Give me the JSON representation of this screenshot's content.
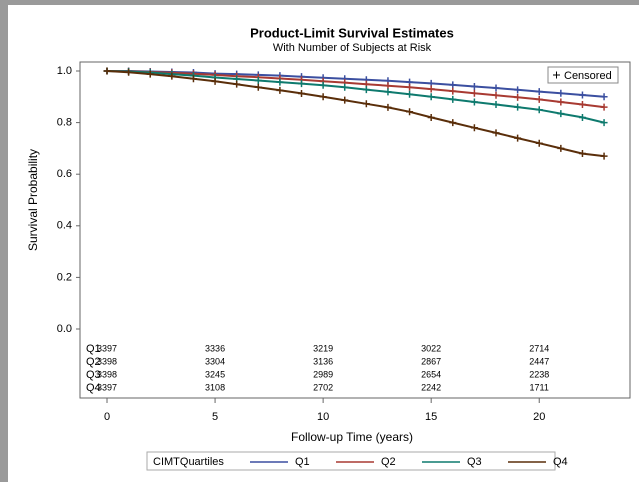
{
  "chart_data": {
    "type": "survival",
    "title": "Product-Limit Survival Estimates",
    "subtitle": "With Number of Subjects at Risk",
    "x_label": "Follow-up Time (years)",
    "y_label": "Survival Probability",
    "legend_title": "CIMTQuartiles",
    "censored_label": "Censored",
    "x": [
      0,
      1,
      2,
      3,
      4,
      5,
      6,
      7,
      8,
      9,
      10,
      11,
      12,
      13,
      14,
      15,
      16,
      17,
      18,
      19,
      20,
      21,
      22,
      23
    ],
    "series": [
      {
        "name": "Q1",
        "color": "#3b4fa0",
        "values": [
          1.0,
          1.0,
          0.998,
          0.996,
          0.994,
          0.99,
          0.988,
          0.985,
          0.982,
          0.978,
          0.974,
          0.97,
          0.966,
          0.962,
          0.957,
          0.952,
          0.946,
          0.94,
          0.934,
          0.927,
          0.92,
          0.914,
          0.907,
          0.9
        ],
        "at_risk": [
          3397,
          3336,
          3219,
          3022,
          2714
        ]
      },
      {
        "name": "Q2",
        "color": "#a83a32",
        "values": [
          1.0,
          0.999,
          0.996,
          0.993,
          0.989,
          0.985,
          0.98,
          0.976,
          0.971,
          0.966,
          0.96,
          0.955,
          0.949,
          0.943,
          0.937,
          0.93,
          0.922,
          0.914,
          0.906,
          0.898,
          0.89,
          0.88,
          0.87,
          0.86
        ],
        "at_risk": [
          3398,
          3304,
          3136,
          2867,
          2447
        ]
      },
      {
        "name": "Q3",
        "color": "#0e7a6e",
        "values": [
          1.0,
          0.998,
          0.994,
          0.988,
          0.982,
          0.975,
          0.969,
          0.963,
          0.957,
          0.951,
          0.945,
          0.937,
          0.928,
          0.919,
          0.91,
          0.9,
          0.89,
          0.88,
          0.87,
          0.86,
          0.85,
          0.835,
          0.82,
          0.8
        ],
        "at_risk": [
          3398,
          3245,
          2989,
          2654,
          2238
        ]
      },
      {
        "name": "Q4",
        "color": "#5a2e0a",
        "values": [
          1.0,
          0.995,
          0.988,
          0.98,
          0.97,
          0.96,
          0.949,
          0.937,
          0.925,
          0.913,
          0.9,
          0.887,
          0.873,
          0.859,
          0.842,
          0.82,
          0.8,
          0.78,
          0.76,
          0.74,
          0.72,
          0.7,
          0.68,
          0.67
        ],
        "at_risk": [
          3397,
          3108,
          2702,
          2242,
          1711
        ]
      }
    ],
    "xlim": [
      -1.25,
      24.2
    ],
    "xticks": [
      0,
      5,
      10,
      15,
      20
    ],
    "ylim": [
      0,
      1
    ],
    "yticks": [
      {
        "value": 0,
        "label": "0.0"
      },
      0.2,
      0.4,
      0.6,
      0.8,
      {
        "value": 1,
        "label": "1.0"
      }
    ]
  }
}
